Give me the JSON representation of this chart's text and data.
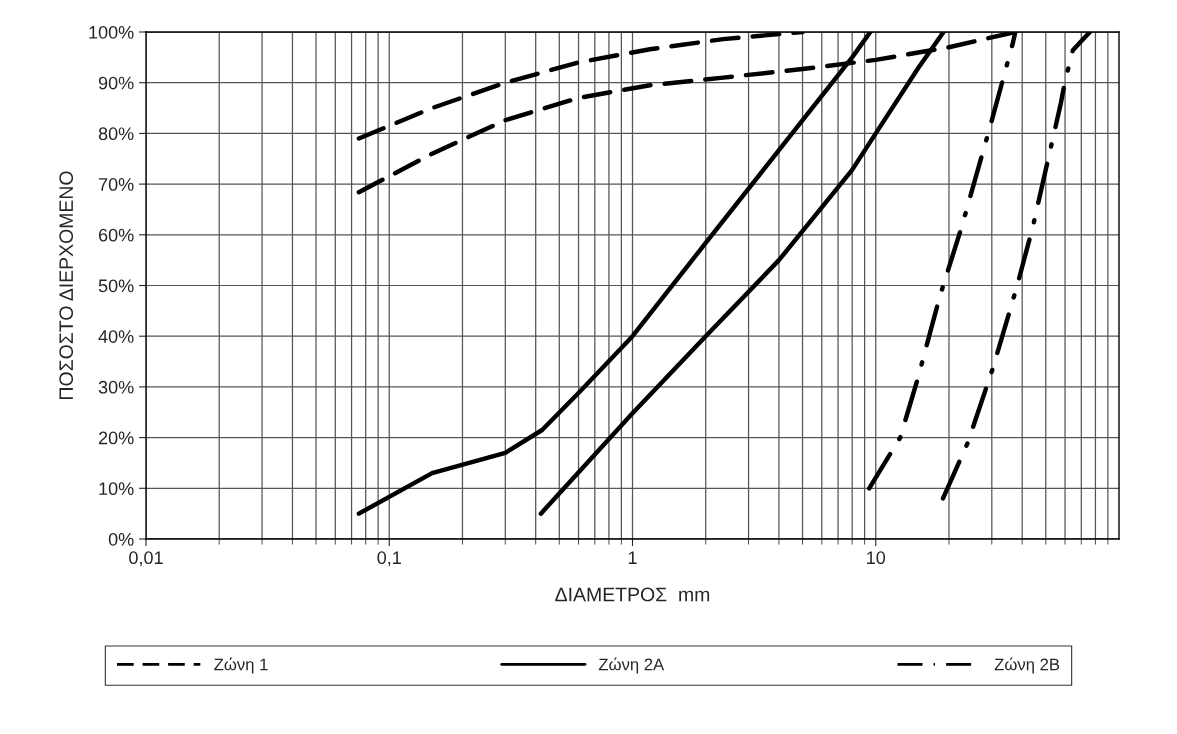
{
  "chart_data": {
    "type": "line",
    "xlabel": "ΔΙΑΜΕΤΡΟΣ  mm",
    "ylabel": "ΠΟΣΟΣΤΟ ΔΙΕΡΧΟΜΕΝΟ",
    "log": "x",
    "grid": true,
    "legend": "bottom",
    "marker": "none",
    "xlim": [
      0.01,
      100
    ],
    "xticks": [
      {
        "value": 0.01,
        "label": "0,01"
      },
      {
        "value": 0.1,
        "label": "0,1"
      },
      {
        "value": 1,
        "label": "1"
      },
      {
        "value": 10,
        "label": "10"
      }
    ],
    "ylim": [
      0,
      100
    ],
    "yticks": [
      {
        "value": 0,
        "label": "0%"
      },
      {
        "value": 10,
        "label": "10%"
      },
      {
        "value": 20,
        "label": "20%"
      },
      {
        "value": 30,
        "label": "30%"
      },
      {
        "value": 40,
        "label": "40%"
      },
      {
        "value": 50,
        "label": "50%"
      },
      {
        "value": 60,
        "label": "60%"
      },
      {
        "value": 70,
        "label": "70%"
      },
      {
        "value": 80,
        "label": "80%"
      },
      {
        "value": 90,
        "label": "90%"
      },
      {
        "value": 100,
        "label": "100%"
      }
    ],
    "series": [
      {
        "name": "Ζώνη 1",
        "color": "#000000",
        "line_style": "dashed",
        "x": [
          0.075,
          0.15,
          0.3,
          0.6,
          1.18,
          2.36,
          5
        ],
        "values": [
          79,
          85,
          90,
          94,
          96.6,
          98.6,
          100
        ]
      },
      {
        "color": "#000000",
        "line_style": "dashed",
        "x": [
          0.075,
          0.15,
          0.3,
          0.6,
          1.18,
          2.36,
          5,
          10,
          20,
          37.5
        ],
        "values": [
          68.4,
          76,
          82.6,
          87,
          89.5,
          91,
          92.7,
          94.5,
          97,
          100
        ]
      },
      {
        "name": "Ζώνη 2A",
        "color": "#000000",
        "line_style": "solid",
        "x": [
          0.075,
          0.15,
          0.3,
          0.425,
          0.6,
          1,
          2,
          4,
          8,
          9.5
        ],
        "values": [
          5,
          13,
          17,
          21.5,
          28.8,
          40,
          58.4,
          76.7,
          95,
          100
        ]
      },
      {
        "color": "#000000",
        "line_style": "solid",
        "x": [
          0.42,
          1,
          2,
          4,
          8,
          10,
          15,
          19
        ],
        "values": [
          5,
          24.8,
          40,
          55,
          72.8,
          80,
          93,
          100
        ]
      },
      {
        "name": "Ζώνη 2B",
        "color": "#000000",
        "line_style": "dashdot",
        "x": [
          9.4,
          12.6,
          14.9,
          18.3,
          22.6,
          29.7,
          36.6,
          37.5
        ],
        "values": [
          10,
          20,
          31.7,
          47.7,
          61.7,
          81.8,
          97.8,
          100
        ]
      },
      {
        "color": "#000000",
        "line_style": "dashdot",
        "x": [
          18.9,
          23.9,
          30.3,
          38,
          44.3,
          57.7,
          59.8,
          64.6,
          75.9
        ],
        "values": [
          8,
          19,
          33.7,
          49.7,
          61.7,
          86,
          90,
          96.4,
          100
        ]
      }
    ]
  }
}
